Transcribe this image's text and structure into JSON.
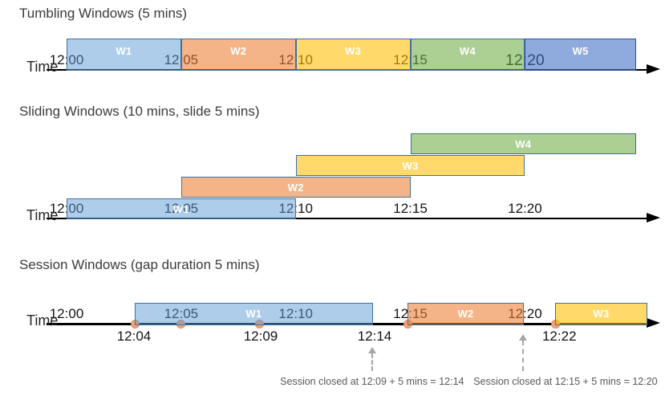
{
  "palette": {
    "blue": {
      "fill": "rgba(91,155,213,0.50)",
      "border": "#41719c"
    },
    "orange": {
      "fill": "rgba(237,125,49,0.58)",
      "border": "#41719c"
    },
    "yellow": {
      "fill": "rgba(255,192,0,0.58)",
      "border": "#41719c"
    },
    "green": {
      "fill": "rgba(112,173,71,0.58)",
      "border": "#41719c"
    },
    "blue2": {
      "fill": "rgba(68,114,196,0.60)",
      "border": "#2f5597"
    }
  },
  "event_dot": {
    "fill": "#f2a479",
    "border": "#de8b61"
  },
  "sections": [
    {
      "id": "tumbling",
      "title": "Tumbling Windows (5 mins)",
      "time_label": "Time",
      "ticks": [
        {
          "label": "12:00",
          "min": 0
        },
        {
          "label": "12:05",
          "min": 5
        },
        {
          "label": "12:10",
          "min": 10
        },
        {
          "label": "12:15",
          "min": 15
        },
        {
          "label": "12:20",
          "min": 20,
          "emphasis": true
        }
      ],
      "windows": [
        {
          "label": "W1",
          "start": 0,
          "end": 5,
          "color": "blue"
        },
        {
          "label": "W2",
          "start": 5,
          "end": 10,
          "color": "orange"
        },
        {
          "label": "W3",
          "start": 10,
          "end": 15,
          "color": "yellow"
        },
        {
          "label": "W4",
          "start": 15,
          "end": 20,
          "color": "green"
        },
        {
          "label": "W5",
          "start": 20,
          "end": 24.85,
          "color": "blue2"
        }
      ]
    },
    {
      "id": "sliding",
      "title": "Sliding Windows (10 mins, slide 5 mins)",
      "time_label": "Time",
      "ticks": [
        {
          "label": "12:00",
          "min": 0
        },
        {
          "label": "12:05",
          "min": 5
        },
        {
          "label": "12:10",
          "min": 10
        },
        {
          "label": "12:15",
          "min": 15
        },
        {
          "label": "12:20",
          "min": 20
        }
      ],
      "windows": [
        {
          "label": "W1",
          "start": 0,
          "end": 10,
          "color": "blue",
          "row": 0
        },
        {
          "label": "W2",
          "start": 5,
          "end": 15,
          "color": "orange",
          "row": 1
        },
        {
          "label": "W3",
          "start": 10,
          "end": 20,
          "color": "yellow",
          "row": 2
        },
        {
          "label": "W4",
          "start": 15,
          "end": 24.85,
          "color": "green",
          "row": 3
        }
      ]
    },
    {
      "id": "session",
      "title": "Session Windows (gap duration 5 mins)",
      "time_label": "Time",
      "ticks": [
        {
          "label": "12:00",
          "min": 0
        },
        {
          "label": "12:05",
          "min": 5
        },
        {
          "label": "12:10",
          "min": 10
        },
        {
          "label": "12:15",
          "min": 15
        },
        {
          "label": "12:20",
          "min": 20
        }
      ],
      "windows": [
        {
          "label": "W1",
          "start": 2.97,
          "end": 13.37,
          "color": "blue"
        },
        {
          "label": "W2",
          "start": 14.88,
          "end": 19.95,
          "color": "orange"
        },
        {
          "label": "W3",
          "start": 21.31,
          "end": 25.34,
          "color": "yellow"
        }
      ],
      "events": [
        {
          "min": 3.01
        },
        {
          "min": 5.0
        },
        {
          "min": 8.43
        },
        {
          "min": 14.88
        },
        {
          "min": 21.35
        }
      ],
      "event_labels": [
        {
          "label": "12:04",
          "min": 2.94
        },
        {
          "label": "12:09",
          "min": 8.47
        },
        {
          "label": "12:14",
          "min": 13.44
        },
        {
          "label": "12:22",
          "min": 21.5
        }
      ],
      "annotations": [
        {
          "text": "Session closed at 12:09 + 5 mins = 12:14",
          "arrow_min": 13.35,
          "text_center_min": 13.33
        },
        {
          "text": "Session closed at 12:15 + 5 mins = 12:20",
          "arrow_min": 19.9,
          "text_center_min": 21.77
        }
      ]
    }
  ]
}
